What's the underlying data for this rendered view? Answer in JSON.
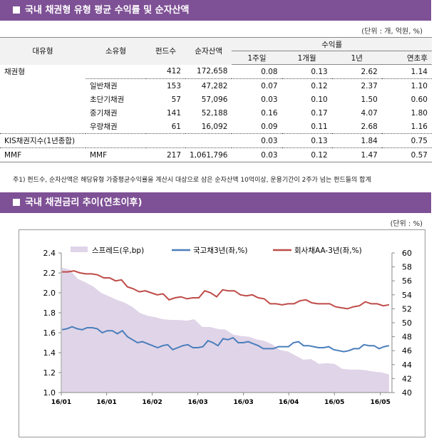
{
  "section1": {
    "title": "국내 채권형 유형 평균 수익률 및 순자산액",
    "unit": "(단위 : 개, 억원, %)"
  },
  "table": {
    "headers": {
      "major": "대유형",
      "minor": "소유형",
      "funds": "펀드수",
      "assets": "순자산액",
      "returns": "수익률",
      "w1": "1주일",
      "m1": "1개월",
      "y1": "1년",
      "ytd": "연초후"
    },
    "rows": [
      [
        "채권형",
        "",
        "412",
        "172,658",
        "0.08",
        "0.13",
        "2.62",
        "1.14"
      ],
      [
        "",
        "일반채권",
        "153",
        "47,282",
        "0.07",
        "0.12",
        "2.37",
        "1.10"
      ],
      [
        "",
        "초단기채권",
        "57",
        "57,096",
        "0.03",
        "0.10",
        "1.50",
        "0.60"
      ],
      [
        "",
        "중기채권",
        "141",
        "52,188",
        "0.16",
        "0.17",
        "4.07",
        "1.80"
      ],
      [
        "",
        "우량채권",
        "61",
        "16,092",
        "0.09",
        "0.11",
        "2.68",
        "1.16"
      ],
      [
        "KIS채권지수(1년종합)",
        "",
        "",
        "",
        "0.03",
        "0.13",
        "1.84",
        "0.75"
      ],
      [
        "MMF",
        "MMF",
        "217",
        "1,061,796",
        "0.03",
        "0.12",
        "1.47",
        "0.57"
      ]
    ]
  },
  "note": "주1) 펀드수, 순자산액은 해당유형 가중평균수익률을 계산시 대상으로 삼은 순자산액 10억이상, 운용기간이 2주가 넘는 펀드들의 합계",
  "section2": {
    "title": "국내 채권금리 추이(연초이후)",
    "unit": "(단위 : %)"
  },
  "chart_data": {
    "type": "line",
    "x_ticks": [
      "16/01",
      "16/01",
      "16/02",
      "16/03",
      "16/03",
      "16/04",
      "16/05",
      "16/05"
    ],
    "y_left": {
      "range": [
        1.0,
        2.4
      ],
      "ticks": [
        "1.0",
        "1.2",
        "1.4",
        "1.6",
        "1.8",
        "2.0",
        "2.2",
        "2.4"
      ]
    },
    "y_right": {
      "range": [
        40,
        60
      ],
      "ticks": [
        "40",
        "42",
        "44",
        "46",
        "48",
        "50",
        "52",
        "54",
        "56",
        "58",
        "60"
      ]
    },
    "legend_position": "top",
    "series": [
      {
        "name": "스프레드(우,bp)",
        "type": "area",
        "axis": "right",
        "color": "#e0d4e8",
        "values": [
          57.9,
          57.6,
          56.3,
          55.8,
          55.2,
          54.3,
          53.8,
          53.3,
          52.9,
          52.3,
          51.4,
          51.0,
          50.8,
          50.5,
          50.4,
          50.4,
          50.3,
          50.5,
          49.4,
          49.4,
          49.1,
          49.0,
          48.3,
          48.1,
          48.0,
          47.6,
          47.4,
          46.9,
          46.1,
          45.9,
          45.3,
          44.7,
          44.8,
          44.1,
          44.2,
          44.1,
          43.4,
          43.3,
          43.3,
          43.2,
          43.0,
          42.9,
          42.6
        ]
      },
      {
        "name": "국고채3년(좌,%)",
        "type": "line",
        "axis": "left",
        "color": "#4a7ebb",
        "values": [
          1.63,
          1.64,
          1.66,
          1.64,
          1.63,
          1.65,
          1.65,
          1.64,
          1.6,
          1.62,
          1.62,
          1.59,
          1.62,
          1.56,
          1.53,
          1.5,
          1.51,
          1.49,
          1.47,
          1.45,
          1.47,
          1.48,
          1.43,
          1.45,
          1.47,
          1.48,
          1.45,
          1.45,
          1.46,
          1.52,
          1.5,
          1.47,
          1.54,
          1.53,
          1.55,
          1.5,
          1.5,
          1.51,
          1.49,
          1.47,
          1.44,
          1.44,
          1.44,
          1.46,
          1.46,
          1.46,
          1.5,
          1.51,
          1.47,
          1.47,
          1.46,
          1.45,
          1.45,
          1.46,
          1.43,
          1.42,
          1.41,
          1.42,
          1.44,
          1.44,
          1.48,
          1.47,
          1.47,
          1.44,
          1.46,
          1.47
        ]
      },
      {
        "name": "회사채AA-3년(좌,%)",
        "type": "line",
        "axis": "left",
        "color": "#be4b48",
        "values": [
          2.21,
          2.21,
          2.22,
          2.2,
          2.19,
          2.19,
          2.18,
          2.15,
          2.15,
          2.12,
          2.13,
          2.06,
          2.04,
          2.01,
          2.02,
          2.0,
          1.98,
          1.99,
          1.93,
          1.95,
          1.96,
          1.94,
          1.95,
          1.95,
          2.02,
          2.0,
          1.96,
          2.03,
          2.02,
          2.02,
          1.98,
          1.97,
          1.98,
          1.95,
          1.94,
          1.89,
          1.89,
          1.88,
          1.89,
          1.89,
          1.92,
          1.93,
          1.9,
          1.89,
          1.89,
          1.89,
          1.86,
          1.85,
          1.84,
          1.86,
          1.87,
          1.91,
          1.89,
          1.89,
          1.87,
          1.88
        ]
      }
    ]
  }
}
